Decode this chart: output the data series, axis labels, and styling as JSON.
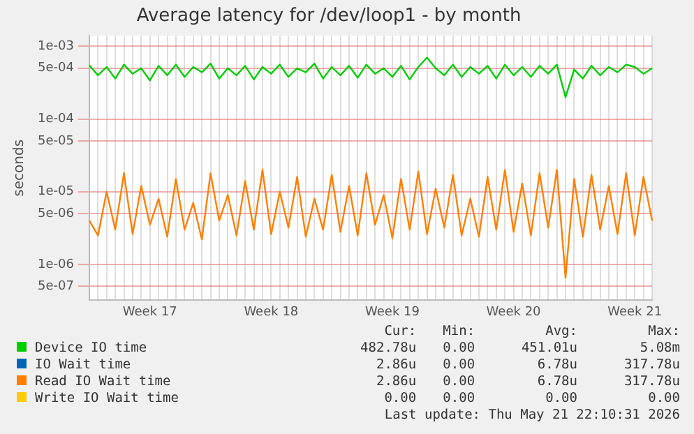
{
  "chart_data": {
    "type": "line",
    "title": "Average latency for /dev/loop1 - by month",
    "ylabel": "seconds",
    "log": "y",
    "grid": true,
    "legend": "bottom",
    "marker": "none",
    "line_style": "solid",
    "categories": [
      null,
      null,
      null,
      null,
      null,
      null,
      null,
      "Week 17",
      null,
      null,
      null,
      null,
      null,
      null,
      null,
      null,
      null,
      null,
      null,
      null,
      null,
      "Week 18",
      null,
      null,
      null,
      null,
      null,
      null,
      null,
      null,
      null,
      null,
      null,
      null,
      null,
      "Week 19",
      null,
      null,
      null,
      null,
      null,
      null,
      null,
      null,
      null,
      null,
      null,
      null,
      null,
      "Week 20",
      null,
      null,
      null,
      null,
      null,
      null,
      null,
      null,
      null,
      null,
      null,
      null,
      null,
      "Week 21",
      null,
      null
    ],
    "ylim": [
      3.2e-07,
      0.0014
    ],
    "yticks": [
      {
        "value": 0.001,
        "label": "1e-03"
      },
      {
        "value": 0.0005,
        "label": "5e-04"
      },
      {
        "value": 0.0001,
        "label": "1e-04"
      },
      {
        "value": 5e-05,
        "label": "5e-05"
      },
      {
        "value": 1e-05,
        "label": "1e-05"
      },
      {
        "value": 5e-06,
        "label": "5e-06"
      },
      {
        "value": 1e-06,
        "label": "1e-06"
      },
      {
        "value": 5e-07,
        "label": "5e-07"
      }
    ],
    "series": [
      {
        "name": "Device IO time",
        "color": "#00cc00",
        "values": [
          0.00055,
          0.0004,
          0.00052,
          0.00036,
          0.00056,
          0.00042,
          0.0005,
          0.00034,
          0.00054,
          0.0004,
          0.00056,
          0.00038,
          0.00052,
          0.00044,
          0.00058,
          0.00036,
          0.0005,
          0.0004,
          0.00054,
          0.00035,
          0.00052,
          0.00042,
          0.00056,
          0.00038,
          0.0005,
          0.00044,
          0.00058,
          0.00036,
          0.00052,
          0.0004,
          0.00054,
          0.00037,
          0.00056,
          0.00042,
          0.0005,
          0.00038,
          0.00054,
          0.00035,
          0.00052,
          0.0007,
          0.0005,
          0.0004,
          0.00056,
          0.00038,
          0.00052,
          0.00042,
          0.00054,
          0.00036,
          0.00056,
          0.0004,
          0.00052,
          0.00038,
          0.00054,
          0.00042,
          0.00056,
          0.0002,
          0.00048,
          0.00036,
          0.00054,
          0.0004,
          0.00052,
          0.00044,
          0.00056,
          0.00052,
          0.00042,
          0.0005
        ]
      },
      {
        "name": "IO Wait time",
        "color": "#0066b3",
        "values": [
          null,
          null,
          null,
          null,
          null,
          null,
          null,
          null,
          null,
          null,
          null,
          null,
          null,
          null,
          null,
          null,
          null,
          null,
          null,
          null,
          null,
          null,
          null,
          null,
          null,
          null,
          null,
          null,
          null,
          null,
          null,
          null,
          null,
          null,
          null,
          null,
          null,
          null,
          null,
          null,
          null,
          null,
          null,
          null,
          null,
          null,
          null,
          null,
          null,
          null,
          null,
          null,
          null,
          null,
          null,
          null,
          null,
          null,
          null,
          null,
          null,
          null,
          null,
          null,
          null,
          null
        ]
      },
      {
        "name": "Read IO Wait time",
        "color": "#ff8000",
        "values": [
          4e-06,
          2.5e-06,
          1e-05,
          3e-06,
          1.8e-05,
          2.6e-06,
          1.2e-05,
          3.5e-06,
          8e-06,
          2.4e-06,
          1.5e-05,
          3e-06,
          7e-06,
          2.2e-06,
          1.8e-05,
          4e-06,
          9e-06,
          2.5e-06,
          1.4e-05,
          3e-06,
          2e-05,
          2.6e-06,
          1e-05,
          3.2e-06,
          1.6e-05,
          2.4e-06,
          8e-06,
          3e-06,
          1.7e-05,
          2.8e-06,
          1.2e-05,
          2.5e-06,
          1.8e-05,
          3.5e-06,
          9e-06,
          2.3e-06,
          1.5e-05,
          3e-06,
          1.9e-05,
          2.6e-06,
          1.1e-05,
          3.2e-06,
          1.7e-05,
          2.5e-06,
          8e-06,
          2.4e-06,
          1.6e-05,
          3e-06,
          2e-05,
          2.8e-06,
          1.3e-05,
          2.5e-06,
          1.8e-05,
          3.2e-06,
          2e-05,
          6.5e-07,
          1.5e-05,
          2.4e-06,
          1.7e-05,
          3e-06,
          1.2e-05,
          2.6e-06,
          1.8e-05,
          2.5e-06,
          1.6e-05,
          4e-06
        ]
      },
      {
        "name": "Write IO Wait time",
        "color": "#ffcc00",
        "values": [
          null,
          null,
          null,
          null,
          null,
          null,
          null,
          null,
          null,
          null,
          null,
          null,
          null,
          null,
          null,
          null,
          null,
          null,
          null,
          null,
          null,
          null,
          null,
          null,
          null,
          null,
          null,
          null,
          null,
          null,
          null,
          null,
          null,
          null,
          null,
          null,
          null,
          null,
          null,
          null,
          null,
          null,
          null,
          null,
          null,
          null,
          null,
          null,
          null,
          null,
          null,
          null,
          null,
          null,
          null,
          null,
          null,
          null,
          null,
          null,
          null,
          null,
          null,
          null,
          null,
          null
        ]
      }
    ],
    "annotations": [
      "Cur:",
      "Min:",
      "Avg:",
      "Max:",
      "482.78u",
      "0.00",
      "451.01u",
      "5.08m",
      "2.86u",
      "0.00",
      "6.78u",
      "317.78u",
      "2.86u",
      "0.00",
      "6.78u",
      "317.78u",
      "0.00",
      "0.00",
      "0.00",
      "0.00",
      "Last update: Thu May 21 22:10:31 2026"
    ]
  }
}
